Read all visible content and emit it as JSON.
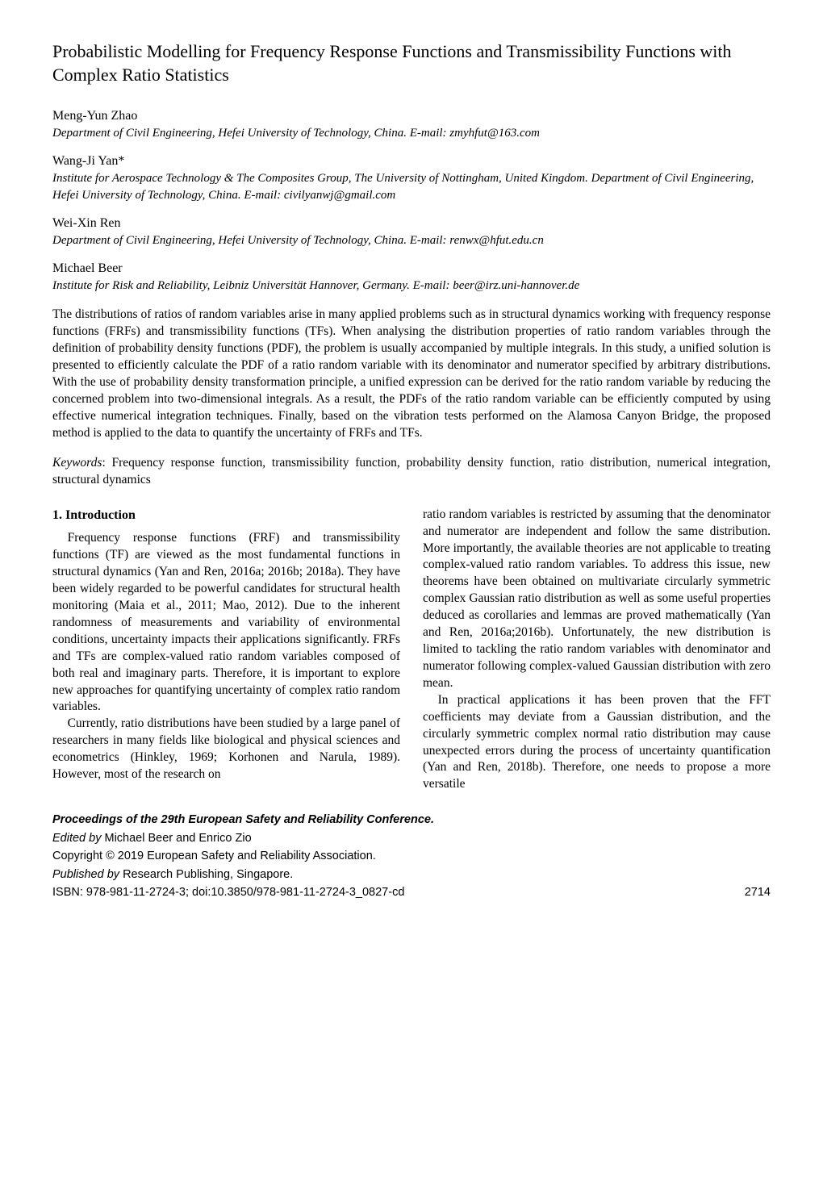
{
  "title": "Probabilistic Modelling for Frequency Response Functions and Transmissibility Functions with Complex Ratio Statistics",
  "authors": [
    {
      "name": "Meng-Yun Zhao",
      "affiliation": "Department of Civil Engineering, Hefei University of Technology, China. E-mail: zmyhfut@163.com"
    },
    {
      "name": "Wang-Ji Yan*",
      "affiliation": "Institute for Aerospace Technology & The Composites Group, The University of Nottingham, United Kingdom. Department of Civil Engineering, Hefei University of Technology, China.  E-mail: civilyanwj@gmail.com"
    },
    {
      "name": "Wei-Xin Ren",
      "affiliation": "Department of Civil Engineering, Hefei University of Technology, China. E-mail: renwx@hfut.edu.cn"
    },
    {
      "name": "Michael Beer",
      "affiliation": "Institute for Risk and Reliability, Leibniz Universität Hannover, Germany. E-mail: beer@irz.uni-hannover.de"
    }
  ],
  "abstract": "The distributions of ratios of random variables arise in many applied problems such as in structural dynamics working with frequency response functions (FRFs) and transmissibility functions (TFs). When analysing the distribution properties of ratio random variables through the definition of probability density functions (PDF), the problem is usually accompanied by multiple integrals. In this study, a unified solution is presented to efficiently calculate the PDF of a ratio random variable with its denominator and numerator specified by arbitrary distributions. With the use of probability density transformation principle, a unified expression can be derived for the ratio random variable by reducing the concerned problem into two-dimensional integrals. As a result, the PDFs of the ratio random variable can be efficiently computed by using effective numerical integration techniques. Finally, based on the vibration tests performed on the Alamosa Canyon Bridge, the proposed method is applied to the data to quantify the uncertainty of FRFs and TFs.",
  "keywords_label": "Keywords",
  "keywords_text": ": Frequency response function, transmissibility function, probability density function, ratio distribution, numerical integration, structural dynamics",
  "section1": {
    "heading": "1. Introduction",
    "col_left": {
      "p1": "Frequency response functions (FRF) and transmissibility functions (TF) are viewed as the most fundamental functions in structural dynamics (Yan and Ren, 2016a; 2016b; 2018a). They have been widely regarded to be powerful candidates for structural health monitoring (Maia et al., 2011; Mao, 2012). Due to the inherent randomness of measurements and variability of environmental conditions, uncertainty impacts their applications significantly. FRFs and TFs are complex-valued ratio random variables composed of both real and imaginary parts. Therefore, it is important to explore new approaches for quantifying uncertainty of complex ratio random variables.",
      "p2": "Currently, ratio distributions have been studied by a large panel of researchers in many fields like biological and physical sciences and econometrics (Hinkley, 1969; Korhonen and Narula, 1989). However, most of the research on"
    },
    "col_right": {
      "p1": "ratio random variables is restricted by assuming that the denominator and numerator are independent and follow the same distribution. More importantly, the available theories are not applicable to treating complex-valued ratio random variables. To address this issue, new theorems have been obtained on multivariate circularly symmetric complex Gaussian ratio distribution as well as some useful properties deduced as corollaries and lemmas are proved mathematically (Yan and Ren, 2016a;2016b). Unfortunately, the new distribution is limited to tackling the ratio random variables with denominator and numerator following complex-valued Gaussian distribution with zero mean.",
      "p2": "In practical applications it has been proven that the FFT coefficients may deviate from a Gaussian distribution, and the circularly symmetric complex normal ratio distribution may cause unexpected errors during the process of uncertainty quantification (Yan and Ren, 2018b). Therefore, one needs to propose a more versatile"
    }
  },
  "footer": {
    "proceedings": "Proceedings of the 29th European Safety and Reliability Conference.",
    "edited_by_label": "Edited by ",
    "edited_by": "Michael Beer and Enrico Zio",
    "copyright": "Copyright © 2019 European Safety and Reliability Association.",
    "published_by_label": "Published by ",
    "published_by": "Research Publishing, Singapore.",
    "isbn": "ISBN: 978-981-11-2724-3; doi:10.3850/978-981-11-2724-3_0827-cd",
    "page_number": "2714"
  }
}
